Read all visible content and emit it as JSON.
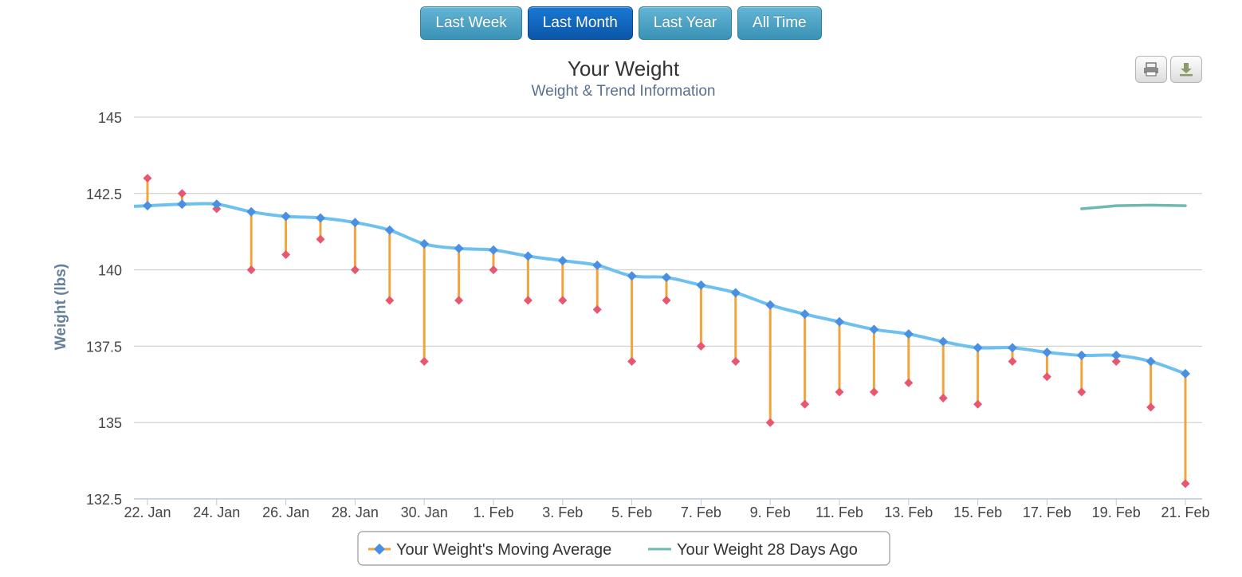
{
  "range_buttons": [
    {
      "label": "Last Week",
      "active": false
    },
    {
      "label": "Last Month",
      "active": true
    },
    {
      "label": "Last Year",
      "active": false
    },
    {
      "label": "All Time",
      "active": false
    }
  ],
  "export_buttons": {
    "print_icon": "print-icon",
    "download_icon": "download-icon"
  },
  "colors": {
    "moving_average": "#4a90e2",
    "moving_average_line": "#6ec0ef",
    "daily_weight": "#e8566f",
    "deviation": "#f0a43a",
    "days_ago_line": "#6fb8b0",
    "grid": "#c8c8c8",
    "axis_text": "#444444",
    "title_text": "#333333",
    "subtitle_text": "#5a7090",
    "ylabel_text": "#667f9c"
  },
  "chart_data": {
    "type": "line",
    "title": "Your Weight",
    "subtitle": "Weight & Trend Information",
    "ylabel": "Weight (lbs)",
    "xlabel": "",
    "ylim": [
      132.5,
      145
    ],
    "yticks": [
      "132.5",
      "135",
      "137.5",
      "140",
      "142.5",
      "145"
    ],
    "grid": true,
    "legend_position": "bottom-center",
    "x": [
      "22. Jan",
      "23. Jan",
      "24. Jan",
      "25. Jan",
      "26. Jan",
      "27. Jan",
      "28. Jan",
      "29. Jan",
      "30. Jan",
      "31. Jan",
      "1. Feb",
      "2. Feb",
      "3. Feb",
      "4. Feb",
      "5. Feb",
      "6. Feb",
      "7. Feb",
      "8. Feb",
      "9. Feb",
      "10. Feb",
      "11. Feb",
      "12. Feb",
      "13. Feb",
      "14. Feb",
      "15. Feb",
      "16. Feb",
      "17. Feb",
      "18. Feb",
      "19. Feb",
      "20. Feb",
      "21. Feb"
    ],
    "x_tick_labels": [
      "22. Jan",
      "24. Jan",
      "26. Jan",
      "28. Jan",
      "30. Jan",
      "1. Feb",
      "3. Feb",
      "5. Feb",
      "7. Feb",
      "9. Feb",
      "11. Feb",
      "13. Feb",
      "15. Feb",
      "17. Feb",
      "19. Feb",
      "21. Feb"
    ],
    "series": [
      {
        "name": "Your Weight's Moving Average",
        "kind": "line-with-markers",
        "values": [
          142.1,
          142.15,
          142.15,
          141.9,
          141.75,
          141.7,
          141.55,
          141.3,
          140.85,
          140.7,
          140.65,
          140.45,
          140.3,
          140.15,
          139.8,
          139.75,
          139.5,
          139.25,
          138.85,
          138.55,
          138.3,
          138.05,
          137.9,
          137.65,
          137.45,
          137.45,
          137.3,
          137.2,
          137.2,
          137.0,
          136.6
        ]
      },
      {
        "name": "Your Weight 28 Days Ago",
        "kind": "line",
        "x": [
          "18. Feb",
          "19. Feb",
          "20. Feb",
          "21. Feb"
        ],
        "values": [
          142.0,
          142.1,
          142.12,
          142.1
        ]
      }
    ],
    "daily_weights": [
      143.0,
      142.5,
      142.0,
      140.0,
      140.5,
      141.0,
      140.0,
      139.0,
      137.0,
      139.0,
      140.0,
      139.0,
      139.0,
      138.7,
      137.0,
      139.0,
      137.5,
      137.0,
      135.0,
      135.6,
      136.0,
      136.0,
      136.3,
      135.8,
      135.6,
      137.0,
      136.5,
      136.0,
      137.0,
      135.5,
      133.0
    ]
  }
}
